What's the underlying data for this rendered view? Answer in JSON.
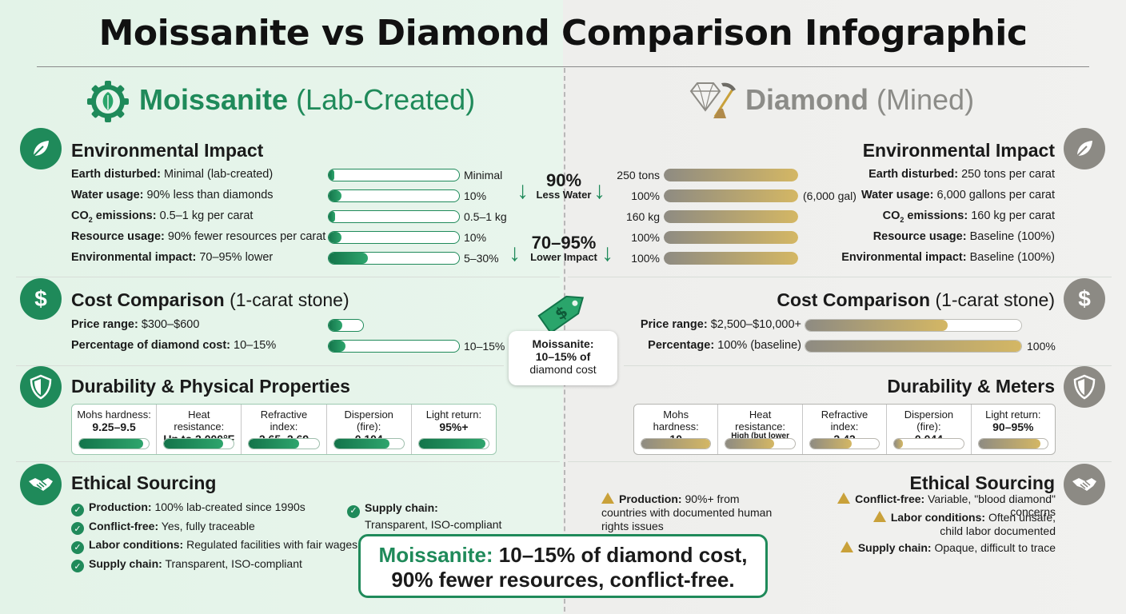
{
  "title": "Moissanite vs Diamond Comparison Infographic",
  "icons": {
    "moissanite_logo": "leaf-gear-icon",
    "diamond_logo": "diamond-pickaxe-icon",
    "environmental": "leaf-icon",
    "cost": "dollar-icon",
    "durability": "shield-icon",
    "ethical": "handshake-icon",
    "price_tag": "price-tag-icon",
    "check": "check-icon",
    "warning": "warning-icon"
  },
  "colors": {
    "moissanite": "#1f8a5a",
    "diamond": "#8c8a84",
    "gold": "#d4b764"
  },
  "moissanite": {
    "name": "Moissanite",
    "qualifier": "(Lab-Created)",
    "environmental": {
      "title": "Environmental Impact",
      "rows": [
        {
          "label": "Earth disturbed:",
          "text": "Minimal (lab-created)",
          "value": "Minimal",
          "fill": 0.02
        },
        {
          "label": "Water usage:",
          "text": "90% less than diamonds",
          "value": "10%",
          "fill": 0.1
        },
        {
          "label": "CO2 emissions:",
          "text": "0.5–1 kg per carat",
          "value": "0.5–1 kg",
          "fill": 0.05
        },
        {
          "label": "Resource usage:",
          "text": "90% fewer resources per carat",
          "value": "10%",
          "fill": 0.1
        },
        {
          "label": "Environmental impact:",
          "text": "70–95% lower",
          "value": "5–30%",
          "fill": 0.3
        }
      ]
    },
    "cost": {
      "title": "Cost Comparison",
      "title_suffix": "(1-carat stone)",
      "rows": [
        {
          "label": "Price range:",
          "text": "$300–$600",
          "value": "",
          "fill": 0.4
        },
        {
          "label": "Percentage of diamond cost:",
          "text": "10–15%",
          "value": "10–15%",
          "fill": 0.13
        }
      ]
    },
    "durability": {
      "title": "Durability & Physical Properties",
      "meters": [
        {
          "label": "Mohs hardness:",
          "value": "9.25–9.5",
          "fill": 0.92
        },
        {
          "label": "Heat resistance:",
          "value": "Up to 2,000°F",
          "fill": 0.85
        },
        {
          "label": "Refractive index:",
          "value": "2.65–2.69",
          "fill": 0.72
        },
        {
          "label": "Dispersion (fire):",
          "value": "0.104",
          "fill": 0.8
        },
        {
          "label": "Light return:",
          "value": "95%+",
          "fill": 0.95
        }
      ]
    },
    "ethical": {
      "title": "Ethical Sourcing",
      "items": [
        {
          "label": "Production:",
          "text": "100% lab-created since 1990s"
        },
        {
          "label": "Conflict-free:",
          "text": "Yes, fully traceable"
        },
        {
          "label": "Labor conditions:",
          "text": "Regulated facilities with fair wages"
        },
        {
          "label": "Supply chain:",
          "text": "Transparent, ISO-compliant"
        }
      ],
      "extra": {
        "label": "Supply chain:",
        "text": "Transparent, ISO-compliant"
      }
    }
  },
  "diamond": {
    "name": "Diamond",
    "qualifier": "(Mined)",
    "environmental": {
      "title": "Environmental Impact",
      "rows": [
        {
          "label": "Earth disturbed:",
          "text": "250 tons per carat",
          "value": "250 tons",
          "extra": "",
          "fill": 1.0
        },
        {
          "label": "Water usage:",
          "text": "6,000 gallons per carat",
          "value": "100%",
          "extra": "(6,000 gal)",
          "fill": 1.0
        },
        {
          "label": "CO2 emissions:",
          "text": "160 kg per carat",
          "value": "160 kg",
          "extra": "",
          "fill": 1.0
        },
        {
          "label": "Resource usage:",
          "text": "Baseline (100%)",
          "value": "100%",
          "extra": "",
          "fill": 1.0
        },
        {
          "label": "Environmental impact:",
          "text": "Baseline (100%)",
          "value": "100%",
          "extra": "",
          "fill": 1.0
        }
      ]
    },
    "cost": {
      "title": "Cost Comparison",
      "title_suffix": "(1-carat stone)",
      "rows": [
        {
          "label": "Price range:",
          "text": "$2,500–$10,000+",
          "value": "",
          "fill": 0.66
        },
        {
          "label": "Percentage:",
          "text": "100% (baseline)",
          "value": "100%",
          "fill": 1.0
        }
      ]
    },
    "durability": {
      "title": "Durability & Meters",
      "meters": [
        {
          "label": "Mohs hardness:",
          "value": "10",
          "fill": 1.0
        },
        {
          "label": "Heat resistance:",
          "value": "High (but lower than moissanite)",
          "fill": 0.7
        },
        {
          "label": "Refractive index:",
          "value": "2.42",
          "fill": 0.6
        },
        {
          "label": "Dispersion (fire):",
          "value": "0.044",
          "fill": 0.12
        },
        {
          "label": "Light return:",
          "value": "90–95%",
          "fill": 0.9
        }
      ]
    },
    "ethical": {
      "title": "Ethical Sourcing",
      "items": [
        {
          "label": "Production:",
          "text": "90%+ from countries with documented human rights issues"
        },
        {
          "label": "Conflict-free:",
          "text": "Variable, \"blood diamond\" concerns"
        },
        {
          "label": "Labor conditions:",
          "text": "Often unsafe, child labor documented"
        },
        {
          "label": "Supply chain:",
          "text": "Opaque, difficult to trace"
        }
      ]
    }
  },
  "callouts": {
    "water_pct": "90%",
    "water_label": "Less Water",
    "impact_pct": "70–95%",
    "impact_label": "Lower Impact",
    "tag_line1": "Moissanite:",
    "tag_line2": "10–15% of",
    "tag_line3": "diamond cost"
  },
  "summary": {
    "highlight": "Moissanite:",
    "line1": "10–15% of diamond cost,",
    "line2": "90% fewer resources, conflict-free."
  }
}
